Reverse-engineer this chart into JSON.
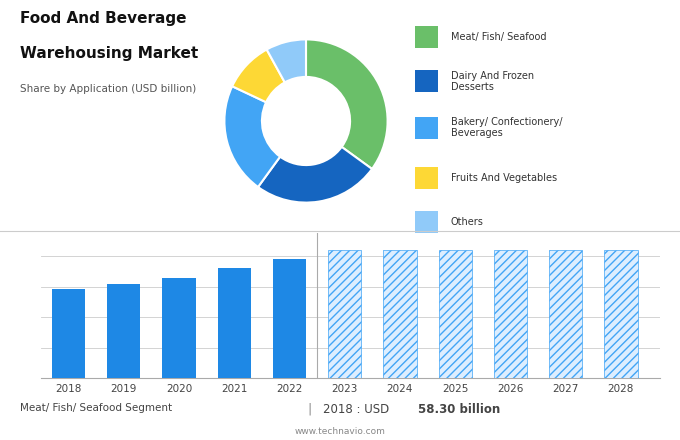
{
  "title_line1": "Food And Beverage",
  "title_line2": "Warehousing Market",
  "subtitle": "Share by Application (USD billion)",
  "bg_color_top": "#e0e0e0",
  "bg_color_bottom": "#ffffff",
  "pie_sizes": [
    35,
    25,
    22,
    10,
    8
  ],
  "pie_colors": [
    "#6abf69",
    "#1565c0",
    "#42a5f5",
    "#fdd835",
    "#90caf9"
  ],
  "pie_legend_colors": [
    "#6abf69",
    "#1565c0",
    "#42a5f5",
    "#fdd835",
    "#90caf9"
  ],
  "pie_legend_labels": [
    "Meat/ Fish/ Seafood",
    "Dairy And Frozen\nDesserts",
    "Bakery/ Confectionery/\nBeverages",
    "Fruits And Vegetables",
    "Others"
  ],
  "bar_years_solid": [
    2018,
    2019,
    2020,
    2021,
    2022
  ],
  "bar_values_solid": [
    58.3,
    62,
    66,
    72,
    78
  ],
  "bar_years_hatched": [
    2023,
    2024,
    2025,
    2026,
    2027,
    2028
  ],
  "bar_values_hatched": [
    84,
    84,
    84,
    84,
    84,
    84
  ],
  "bar_color_solid": "#1e88e5",
  "bar_color_hatched_edge": "#42a5f5",
  "bar_color_hatched_face": "#ddeeff",
  "bar_width": 0.6,
  "ylim": [
    0,
    95
  ],
  "yticks": [
    0,
    20,
    40,
    60,
    80
  ],
  "footer_left": "Meat/ Fish/ Seafood Segment",
  "footer_sep": "|",
  "footer_right_plain": "2018 : USD ",
  "footer_right_bold": "58.30 billion",
  "footer_url": "www.technavio.com",
  "footer_color": "#444444"
}
